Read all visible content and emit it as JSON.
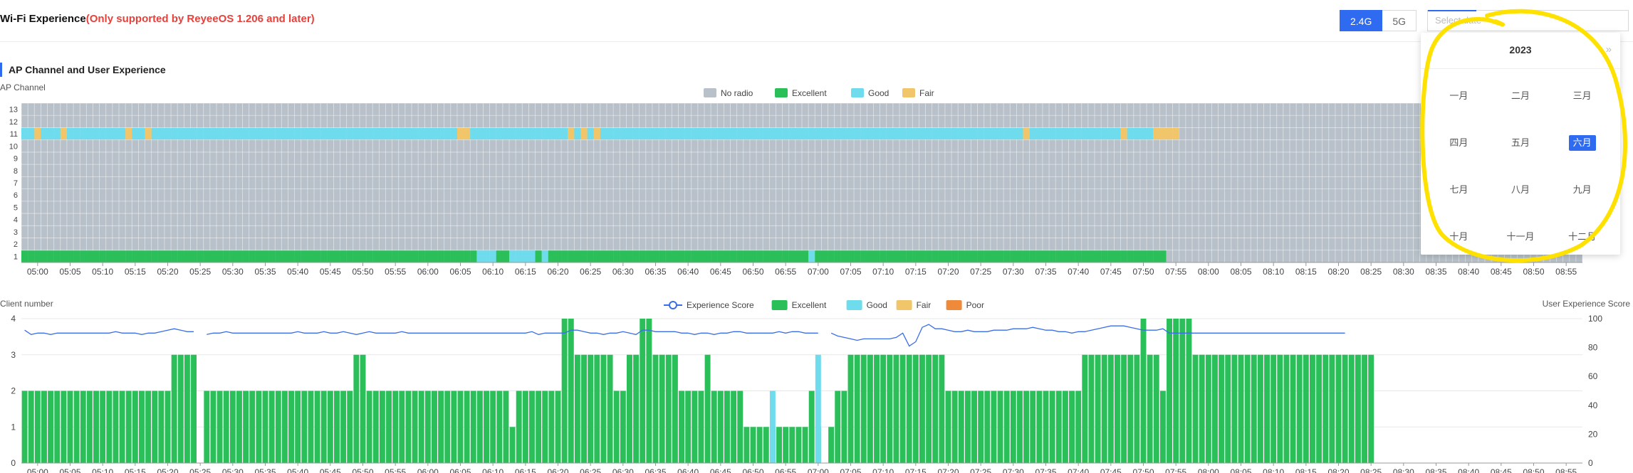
{
  "header": {
    "title": "Wi-Fi Experience",
    "note": "(Only supported by ReyeeOS 1.206 and later)"
  },
  "band": {
    "options": [
      "2.4G",
      "5G"
    ],
    "selected": "2.4G"
  },
  "date": {
    "placeholder": "Select date"
  },
  "section": {
    "title": "AP Channel and User Experience"
  },
  "picker": {
    "year": "2023",
    "next_icon": "»",
    "months": [
      "一月",
      "二月",
      "三月",
      "四月",
      "五月",
      "六月",
      "七月",
      "八月",
      "九月",
      "十月",
      "十一月",
      "十二月"
    ],
    "selected": "六月"
  },
  "colors": {
    "no_radio": "#b8c1c9",
    "excellent": "#2bbf5a",
    "good": "#6edcec",
    "fair": "#f1c66b",
    "poor": "#ee8a3a",
    "score_line": "#3a6ee8",
    "accent": "#2f6bf0",
    "annotation": "#ffe100"
  },
  "chart_data": [
    {
      "type": "heatmap",
      "title": "",
      "ylabel": "AP Channel",
      "y_categories": [
        "1",
        "2",
        "3",
        "4",
        "5",
        "6",
        "7",
        "8",
        "9",
        "10",
        "11",
        "12",
        "13"
      ],
      "x_ticks": [
        "05:00",
        "05:05",
        "05:10",
        "05:15",
        "05:20",
        "05:25",
        "05:30",
        "05:35",
        "05:40",
        "05:45",
        "05:50",
        "05:55",
        "06:00",
        "06:05",
        "06:10",
        "06:15",
        "06:20",
        "06:25",
        "06:30",
        "06:35",
        "06:40",
        "06:45",
        "06:50",
        "06:55",
        "07:00",
        "07:05",
        "07:10",
        "07:15",
        "07:20",
        "07:25",
        "07:30",
        "07:35",
        "07:40",
        "07:45",
        "07:50",
        "07:55",
        "08:00",
        "08:05",
        "08:10",
        "08:15",
        "08:20",
        "08:25",
        "08:30",
        "08:35",
        "08:40",
        "08:45",
        "08:50",
        "08:55"
      ],
      "x_start": "04:58",
      "x_step_minutes": 1,
      "x_count": 240,
      "legend": [
        "No radio",
        "Excellent",
        "Good",
        "Fair"
      ],
      "legend_position": "top",
      "default_state": "No radio",
      "rows": {
        "11": {
          "range": [
            "04:58",
            "07:51"
          ],
          "default": "Good",
          "overrides": [
            [
              "05:00",
              "Fair"
            ],
            [
              "05:04",
              "Fair"
            ],
            [
              "05:14",
              "Fair"
            ],
            [
              "05:17",
              "Fair"
            ],
            [
              "06:05",
              "Fair"
            ],
            [
              "06:06",
              "Fair"
            ],
            [
              "06:22",
              "Fair"
            ],
            [
              "06:24",
              "Fair"
            ],
            [
              "06:26",
              "Fair"
            ],
            [
              "07:32",
              "Fair"
            ],
            [
              "07:47",
              "Fair"
            ],
            [
              "07:52",
              "Fair"
            ],
            [
              "07:53",
              "Fair"
            ],
            [
              "07:54",
              "Fair"
            ],
            [
              "07:55",
              "Fair"
            ]
          ]
        },
        "1": {
          "range": [
            "04:58",
            "07:53"
          ],
          "default": "Excellent",
          "overrides": [
            [
              "06:08",
              "Good"
            ],
            [
              "06:09",
              "Good"
            ],
            [
              "06:10",
              "Good"
            ],
            [
              "06:13",
              "Good"
            ],
            [
              "06:14",
              "Good"
            ],
            [
              "06:15",
              "Good"
            ],
            [
              "06:16",
              "Good"
            ],
            [
              "06:18",
              "Good"
            ],
            [
              "06:59",
              "Good"
            ]
          ]
        }
      }
    },
    {
      "type": "bar",
      "title": "",
      "ylabel": "Client number",
      "y2label": "User Experience Score",
      "ylim": [
        0,
        4
      ],
      "y2lim": [
        0,
        100
      ],
      "y_ticks": [
        "0",
        "1",
        "2",
        "3",
        "4"
      ],
      "y2_ticks": [
        "0",
        "20",
        "40",
        "60",
        "80",
        "100"
      ],
      "legend": [
        "Experience Score",
        "Excellent",
        "Good",
        "Fair",
        "Poor"
      ],
      "legend_position": "top",
      "x_start": "04:58",
      "x_step_minutes": 1,
      "series": [
        {
          "name": "Excellent",
          "values": [
            2,
            2,
            2,
            2,
            2,
            2,
            2,
            2,
            2,
            2,
            2,
            2,
            2,
            2,
            2,
            2,
            2,
            2,
            2,
            2,
            2,
            2,
            2,
            3,
            3,
            3,
            3,
            null,
            2,
            2,
            2,
            2,
            2,
            2,
            2,
            2,
            2,
            2,
            2,
            2,
            2,
            2,
            2,
            2,
            2,
            2,
            2,
            2,
            2,
            2,
            2,
            3,
            3,
            2,
            2,
            2,
            2,
            2,
            2,
            2,
            2,
            2,
            2,
            2,
            2,
            2,
            2,
            2,
            2,
            2,
            2,
            2,
            2,
            2,
            2,
            1,
            2,
            2,
            2,
            2,
            2,
            2,
            2,
            4,
            4,
            3,
            3,
            3,
            3,
            3,
            3,
            2,
            2,
            3,
            3,
            4,
            4,
            3,
            3,
            3,
            3,
            2,
            2,
            2,
            2,
            3,
            2,
            2,
            2,
            2,
            2,
            1,
            1,
            1,
            1,
            1,
            1,
            1,
            1,
            1,
            1,
            2,
            1,
            null,
            1,
            2,
            2,
            3,
            3,
            3,
            3,
            3,
            3,
            3,
            3,
            3,
            3,
            3,
            3,
            3,
            3,
            3,
            2,
            2,
            2,
            2,
            2,
            2,
            2,
            2,
            2,
            2,
            2,
            2,
            2,
            2,
            2,
            2,
            2,
            2,
            2,
            2,
            2,
            3,
            3,
            3,
            3,
            3,
            3,
            3,
            3,
            3,
            4,
            3,
            3,
            2,
            4,
            4,
            4,
            4,
            3,
            3,
            3,
            3,
            3,
            3,
            3,
            3,
            3,
            3,
            3,
            3,
            3,
            3,
            3,
            3,
            3,
            3,
            3,
            3,
            3,
            3,
            3,
            3,
            3,
            3,
            3,
            3
          ]
        },
        {
          "name": "Good",
          "points": [
            [
              "06:53",
              2
            ],
            [
              "07:00",
              3
            ]
          ]
        },
        {
          "name": "Experience Score",
          "values": [
            92,
            89,
            90,
            90,
            89,
            90,
            90,
            90,
            90,
            90,
            90,
            90,
            90,
            90,
            91,
            90,
            90,
            90,
            89,
            90,
            90,
            91,
            92,
            93,
            92,
            91,
            91,
            null,
            89,
            90,
            90,
            91,
            90,
            90,
            90,
            90,
            90,
            90,
            90,
            90,
            90,
            90,
            91,
            90,
            90,
            90,
            91,
            90,
            90,
            91,
            90,
            89,
            90,
            91,
            90,
            90,
            90,
            90,
            91,
            90,
            90,
            90,
            90,
            90,
            90,
            90,
            90,
            90,
            90,
            90,
            90,
            90,
            90,
            90,
            90,
            90,
            90,
            90,
            91,
            89,
            90,
            90,
            90,
            90,
            92,
            92,
            91,
            90,
            90,
            89,
            90,
            90,
            91,
            90,
            89,
            92,
            92,
            91,
            91,
            91,
            91,
            90,
            90,
            89,
            90,
            90,
            89,
            90,
            90,
            91,
            91,
            90,
            90,
            90,
            90,
            90,
            91,
            90,
            91,
            91,
            90,
            90,
            90,
            null,
            90,
            88,
            87,
            86,
            85,
            86,
            86,
            86,
            86,
            86,
            87,
            90,
            81,
            84,
            94,
            96,
            93,
            93,
            92,
            91,
            91,
            92,
            91,
            91,
            91,
            92,
            92,
            92,
            93,
            93,
            93,
            94,
            93,
            92,
            92,
            91,
            91,
            90,
            91,
            91,
            92,
            93,
            94,
            95,
            95,
            95,
            94,
            93,
            92,
            92,
            92,
            93,
            90,
            90,
            90,
            90,
            90,
            90,
            90,
            90,
            90,
            90,
            90,
            90,
            90,
            90,
            90,
            90,
            90,
            90,
            90,
            90,
            90,
            90,
            90,
            90,
            90,
            90,
            90,
            90
          ]
        }
      ]
    }
  ]
}
